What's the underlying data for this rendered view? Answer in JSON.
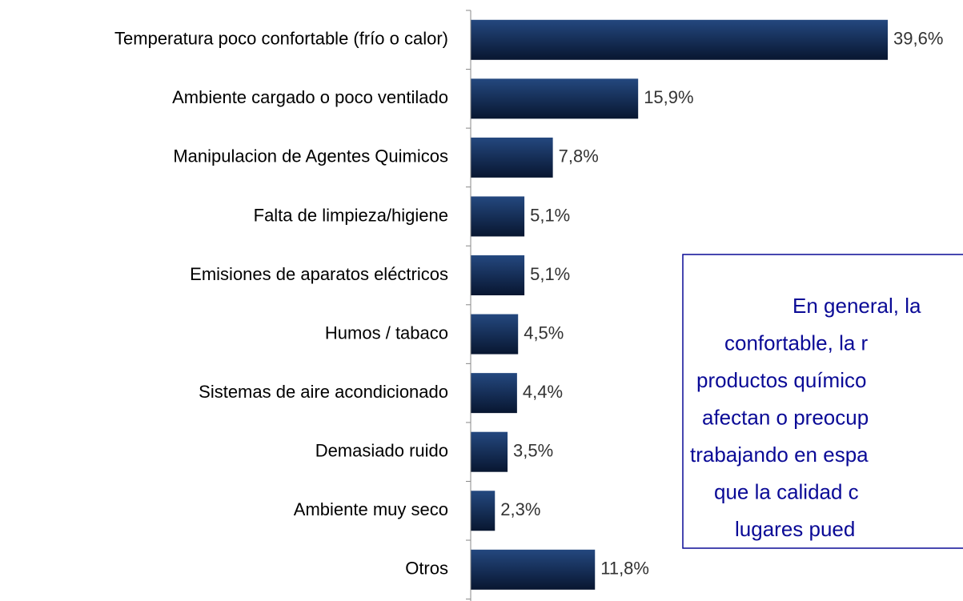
{
  "chart_data": {
    "type": "bar",
    "orientation": "horizontal",
    "categories": [
      "Temperatura poco confortable (frío o calor)",
      "Ambiente cargado o poco ventilado",
      "Manipulacion de Agentes Quimicos",
      "Falta de limpieza/higiene",
      "Emisiones de aparatos eléctricos",
      "Humos / tabaco",
      "Sistemas de aire acondicionado",
      "Demasiado ruido",
      "Ambiente muy seco",
      "Otros"
    ],
    "values": [
      39.6,
      15.9,
      7.8,
      5.1,
      5.1,
      4.5,
      4.4,
      3.5,
      2.3,
      11.8
    ],
    "value_labels": [
      "39,6%",
      "15,9%",
      "7,8%",
      "5,1%",
      "5,1%",
      "4,5%",
      "4,4%",
      "3,5%",
      "2,3%",
      "11,8%"
    ],
    "color": "#142c55",
    "annotation": [
      "En general, la",
      "confortable, la r",
      "productos químico",
      "afectan o preocup",
      "trabajando en espa",
      "que la calidad c",
      "lugares pued"
    ]
  }
}
